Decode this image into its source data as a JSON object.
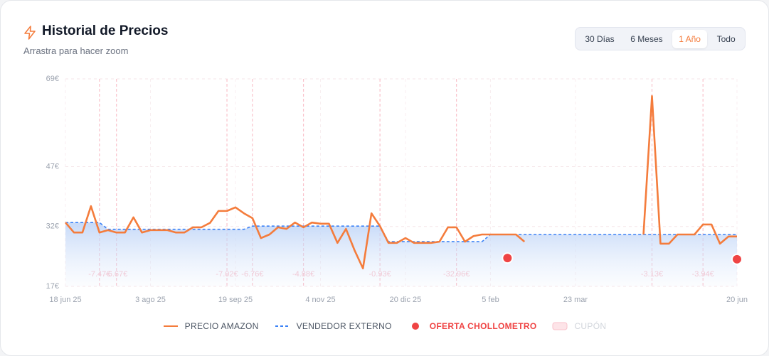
{
  "header": {
    "title": "Historial de Precios",
    "subtitle": "Arrastra para hacer zoom"
  },
  "controls": {
    "buttons": [
      "30 Días",
      "6 Meses",
      "1 Año",
      "Todo"
    ],
    "active": 2
  },
  "chart_data": {
    "type": "line",
    "categories": [
      "18 jun 25",
      null,
      null,
      null,
      null,
      null,
      null,
      null,
      null,
      null,
      "3 ago 25",
      null,
      null,
      null,
      null,
      null,
      null,
      null,
      null,
      null,
      "19 sep 25",
      null,
      null,
      null,
      null,
      null,
      null,
      null,
      null,
      null,
      "4 nov 25",
      null,
      null,
      null,
      null,
      null,
      null,
      null,
      null,
      null,
      "20 dic 25",
      null,
      null,
      null,
      null,
      null,
      null,
      null,
      null,
      null,
      "5 feb",
      null,
      null,
      null,
      null,
      null,
      null,
      null,
      null,
      null,
      "23 mar",
      null,
      null,
      null,
      null,
      null,
      null,
      null,
      null,
      null,
      null,
      null,
      null,
      null,
      null,
      null,
      null,
      null,
      null,
      "20 jun"
    ],
    "ylim": [
      17,
      69
    ],
    "yticks": [
      {
        "value": 69,
        "label": "69€"
      },
      {
        "value": 47,
        "label": "47€"
      },
      {
        "value": 32,
        "label": "32€"
      },
      {
        "value": 17,
        "label": "17€"
      }
    ],
    "grid": true,
    "series": [
      {
        "name": "PRECIO AMAZON",
        "color": "#f47c3c",
        "style": "line",
        "values": [
          33.0,
          30.5,
          30.5,
          37.1,
          30.5,
          31.1,
          30.5,
          30.5,
          34.3,
          30.5,
          31.1,
          31.1,
          31.1,
          30.5,
          30.5,
          31.8,
          31.8,
          32.9,
          35.9,
          35.9,
          36.8,
          35.3,
          34.1,
          29.1,
          30.0,
          31.8,
          31.4,
          33.0,
          31.8,
          33.0,
          32.7,
          32.7,
          27.9,
          31.4,
          26.1,
          21.5,
          35.3,
          32.1,
          27.9,
          27.9,
          29.1,
          27.9,
          27.9,
          27.9,
          28.2,
          31.8,
          31.8,
          28.2,
          29.6,
          30.0,
          30.0,
          30.0,
          30.0,
          30.0,
          28.2,
          null,
          null,
          null,
          null,
          null,
          null,
          null,
          null,
          null,
          null,
          null,
          null,
          null,
          30.0,
          64.7,
          27.7,
          27.7,
          30.0,
          30.0,
          30.0,
          32.5,
          32.5,
          27.7,
          29.5,
          29.5
        ]
      },
      {
        "name": "VENDEDOR EXTERNO",
        "color": "#3b82f6",
        "style": "dashed",
        "values": [
          33.0,
          33.0,
          33.0,
          33.0,
          33.0,
          31.3,
          31.3,
          31.3,
          31.3,
          31.3,
          31.3,
          31.3,
          31.3,
          31.3,
          31.3,
          31.3,
          31.3,
          31.3,
          31.3,
          31.3,
          31.3,
          31.3,
          32.1,
          32.1,
          32.1,
          32.1,
          32.1,
          32.1,
          32.1,
          32.1,
          32.1,
          32.1,
          32.1,
          32.1,
          32.1,
          32.1,
          32.1,
          32.1,
          28.2,
          28.2,
          28.2,
          28.2,
          28.2,
          28.2,
          28.2,
          28.2,
          28.2,
          28.2,
          28.2,
          28.2,
          30.0,
          30.0,
          30.0,
          30.0,
          30.0,
          30.0,
          30.0,
          30.0,
          30.0,
          30.0,
          30.0,
          30.0,
          30.0,
          30.0,
          30.0,
          30.0,
          30.0,
          30.0,
          30.0,
          30.0,
          30.0,
          30.0,
          30.0,
          30.0,
          30.0,
          30.0,
          30.0,
          30.0,
          30.0,
          30.0
        ]
      },
      {
        "name": "OFERTA CHOLLOMETRO",
        "color": "#ef4444",
        "style": "dot",
        "values": [
          null,
          null,
          null,
          null,
          null,
          null,
          null,
          null,
          null,
          null,
          null,
          null,
          null,
          null,
          null,
          null,
          null,
          null,
          null,
          null,
          null,
          null,
          null,
          null,
          null,
          null,
          null,
          null,
          null,
          null,
          null,
          null,
          null,
          null,
          null,
          null,
          null,
          null,
          null,
          null,
          null,
          null,
          null,
          null,
          null,
          null,
          null,
          null,
          null,
          null,
          null,
          null,
          24.1,
          null,
          null,
          null,
          null,
          null,
          null,
          null,
          null,
          null,
          null,
          null,
          null,
          null,
          null,
          null,
          null,
          null,
          null,
          null,
          null,
          null,
          null,
          null,
          null,
          null,
          null,
          23.8
        ]
      },
      {
        "name": "CUPÓN",
        "color": "#f9c2cb",
        "style": "coupon",
        "values": [
          null,
          null,
          null,
          null,
          -7.47,
          null,
          -6.67,
          null,
          null,
          null,
          null,
          null,
          null,
          null,
          null,
          null,
          null,
          null,
          null,
          -7.02,
          null,
          null,
          -6.76,
          null,
          null,
          null,
          null,
          null,
          -4.88,
          null,
          null,
          null,
          null,
          null,
          null,
          null,
          null,
          -0.93,
          null,
          null,
          null,
          null,
          null,
          null,
          null,
          null,
          -32.96,
          null,
          null,
          null,
          null,
          null,
          null,
          null,
          null,
          null,
          null,
          null,
          null,
          null,
          null,
          null,
          null,
          null,
          null,
          null,
          null,
          null,
          null,
          -3.13,
          null,
          null,
          null,
          null,
          null,
          -3.94,
          null,
          null,
          null,
          null
        ],
        "value_labels": [
          null,
          null,
          null,
          null,
          "-7.47€",
          null,
          "-6.67€",
          null,
          null,
          null,
          null,
          null,
          null,
          null,
          null,
          null,
          null,
          null,
          null,
          "-7.02€",
          null,
          null,
          "-6.76€",
          null,
          null,
          null,
          null,
          null,
          "-4.88€",
          null,
          null,
          null,
          null,
          null,
          null,
          null,
          null,
          "-0.93€",
          null,
          null,
          null,
          null,
          null,
          null,
          null,
          null,
          "-32.96€",
          null,
          null,
          null,
          null,
          null,
          null,
          null,
          null,
          null,
          null,
          null,
          null,
          null,
          null,
          null,
          null,
          null,
          null,
          null,
          null,
          null,
          null,
          "-3.13€",
          null,
          null,
          null,
          null,
          null,
          "-3.94€",
          null,
          null,
          null,
          null
        ]
      }
    ]
  }
}
